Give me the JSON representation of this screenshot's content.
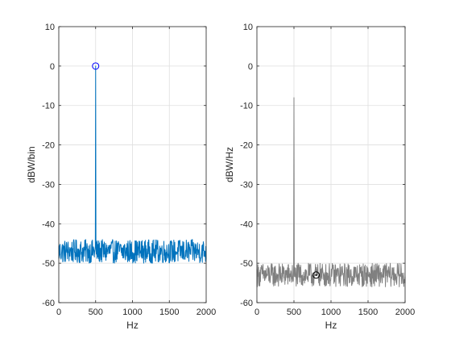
{
  "figure": {
    "background": "#ffffff"
  },
  "chart_data": [
    {
      "type": "line",
      "title": "",
      "xlabel": "Hz",
      "ylabel": "dBW/bin",
      "xlim": [
        0,
        2000
      ],
      "ylim": [
        -60,
        10
      ],
      "xticks": [
        0,
        500,
        1000,
        1500,
        2000
      ],
      "yticks": [
        -60,
        -50,
        -40,
        -30,
        -20,
        -10,
        0,
        10
      ],
      "grid": true,
      "series": [
        {
          "color": "#0072bd",
          "noise_floor_db": -47,
          "noise_range_db": [
            -50,
            -44
          ],
          "peak": {
            "x": 500,
            "y": 0
          }
        }
      ],
      "markers": [
        {
          "shape": "circle",
          "x": 500,
          "y": 0,
          "color": "#0000ff"
        }
      ]
    },
    {
      "type": "line",
      "title": "",
      "xlabel": "Hz",
      "ylabel": "dBW/Hz",
      "xlim": [
        0,
        2000
      ],
      "ylim": [
        -60,
        10
      ],
      "xticks": [
        0,
        500,
        1000,
        1500,
        2000
      ],
      "yticks": [
        -60,
        -50,
        -40,
        -30,
        -20,
        -10,
        0,
        10
      ],
      "grid": true,
      "series": [
        {
          "color": "#808080",
          "noise_floor_db": -53,
          "noise_range_db": [
            -56,
            -50
          ],
          "peak": {
            "x": 500,
            "y": -8
          }
        }
      ],
      "markers": [
        {
          "shape": "circle",
          "x": 800,
          "y": -53,
          "color": "#000000"
        },
        {
          "shape": "point",
          "x": 800,
          "y": -53,
          "color": "#000000"
        }
      ]
    }
  ]
}
